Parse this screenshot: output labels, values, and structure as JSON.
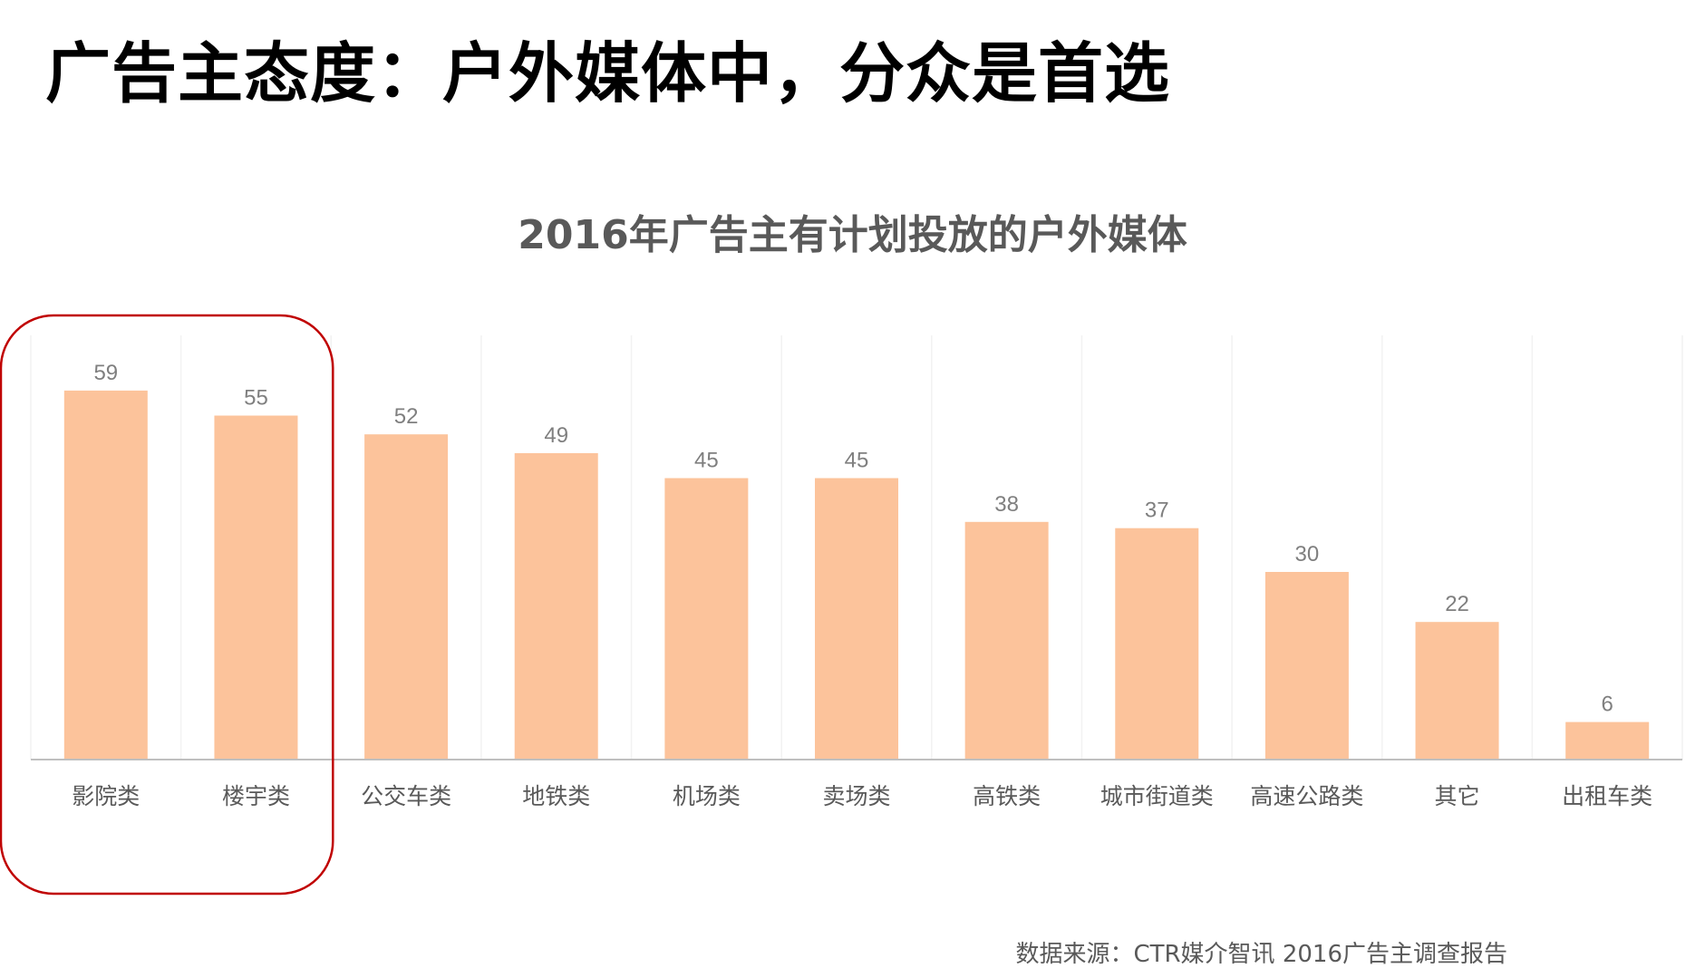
{
  "page": {
    "title": "广告主态度：户外媒体中，分众是首选",
    "source": "数据来源：CTR媒介智讯   2016广告主调查报告"
  },
  "chart_data": {
    "type": "bar",
    "title": "2016年广告主有计划投放的户外媒体",
    "xlabel": "",
    "ylabel": "",
    "categories": [
      "影院类",
      "楼宇类",
      "公交车类",
      "地铁类",
      "机场类",
      "卖场类",
      "高铁类",
      "城市街道类",
      "高速公路类",
      "其它",
      "出租车类"
    ],
    "values": [
      59,
      55,
      52,
      49,
      45,
      45,
      38,
      37,
      30,
      22,
      6
    ],
    "ylim": [
      0,
      70
    ],
    "grid": "vertical separators",
    "data_labels": true,
    "highlight_categories": [
      "影院类",
      "楼宇类"
    ],
    "colors": {
      "bar": "#FCC39B",
      "value_label": "#7F7F7F",
      "category_label": "#595959",
      "baseline": "#BFBFBF",
      "gridline": "#F2F2F2",
      "highlight_border": "#C00000"
    }
  }
}
